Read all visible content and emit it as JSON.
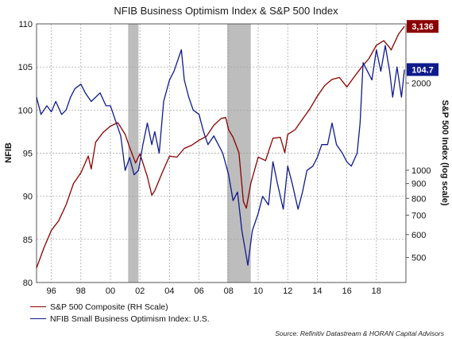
{
  "title": "NFIB Business Optimism Index & S&P 500 Index",
  "source": "Source: Refinitiv Datastream & HORAN Capital Advisors",
  "legend": [
    {
      "label": "S&P 500 Composite (RH Scale)",
      "color": "#8b0000"
    },
    {
      "label": "NFIB Small Business Optimism Index: U.S.",
      "color": "#0f1a8c"
    }
  ],
  "colors": {
    "sp500": "#8b0000",
    "nfib": "#0f1a8c",
    "recession": "#bdbdbd",
    "grid": "#9a9a9a"
  },
  "chart_data": {
    "type": "line",
    "left_axis": {
      "label": "NFIB",
      "range": [
        80,
        110
      ],
      "ticks": [
        80,
        85,
        90,
        95,
        100,
        105,
        110
      ]
    },
    "right_axis": {
      "label": "S&P 500 Index (log scale)",
      "scale": "log",
      "range": [
        410,
        3200
      ],
      "ticks": [
        500,
        600,
        700,
        800,
        900,
        1000,
        2000
      ]
    },
    "x_axis": {
      "range": [
        1995.0,
        2020.0
      ],
      "tick_values": [
        1996,
        1998,
        2000,
        2002,
        2004,
        2006,
        2008,
        2010,
        2012,
        2014,
        2016,
        2018
      ],
      "tick_labels": [
        "96",
        "98",
        "00",
        "02",
        "04",
        "06",
        "08",
        "10",
        "12",
        "14",
        "16",
        "18"
      ]
    },
    "grid": true,
    "legend_position": "bottom-left",
    "recessions": [
      [
        2001.2,
        2001.9
      ],
      [
        2007.9,
        2009.5
      ]
    ],
    "callouts": [
      {
        "series": "sp500",
        "label": "3,136",
        "value": 3136
      },
      {
        "series": "nfib",
        "label": "104.7",
        "value": 104.7
      }
    ],
    "series": [
      {
        "name": "S&P 500 Composite (RH Scale)",
        "axis": "right",
        "x": [
          1995.0,
          1995.5,
          1996.0,
          1996.5,
          1997.0,
          1997.5,
          1998.0,
          1998.5,
          1998.7,
          1999.0,
          1999.5,
          2000.0,
          2000.5,
          2000.8,
          2001.0,
          2001.3,
          2001.7,
          2002.0,
          2002.5,
          2002.8,
          2003.0,
          2003.5,
          2004.0,
          2004.5,
          2005.0,
          2005.5,
          2006.0,
          2006.5,
          2007.0,
          2007.5,
          2007.8,
          2008.0,
          2008.3,
          2008.7,
          2009.0,
          2009.2,
          2009.5,
          2010.0,
          2010.5,
          2011.0,
          2011.5,
          2011.8,
          2012.0,
          2012.5,
          2013.0,
          2013.5,
          2014.0,
          2014.5,
          2015.0,
          2015.5,
          2016.0,
          2016.5,
          2017.0,
          2017.5,
          2018.0,
          2018.5,
          2018.9,
          2019.0,
          2019.5,
          2019.9
        ],
        "values": [
          460,
          540,
          620,
          670,
          760,
          900,
          980,
          1120,
          1010,
          1250,
          1350,
          1420,
          1460,
          1380,
          1330,
          1200,
          1060,
          1140,
          950,
          820,
          850,
          980,
          1120,
          1110,
          1190,
          1220,
          1270,
          1310,
          1430,
          1510,
          1520,
          1380,
          1300,
          1150,
          780,
          740,
          900,
          1110,
          1080,
          1290,
          1300,
          1150,
          1330,
          1380,
          1500,
          1630,
          1800,
          1960,
          2060,
          2090,
          1940,
          2100,
          2270,
          2430,
          2700,
          2800,
          2650,
          2600,
          2950,
          3136
        ]
      },
      {
        "name": "NFIB Small Business Optimism Index: U.S.",
        "axis": "left",
        "x": [
          1995.0,
          1995.3,
          1995.7,
          1996.0,
          1996.3,
          1996.7,
          1997.0,
          1997.3,
          1997.6,
          1998.0,
          1998.3,
          1998.7,
          1999.0,
          1999.3,
          1999.7,
          2000.0,
          2000.3,
          2000.7,
          2001.0,
          2001.3,
          2001.6,
          2001.9,
          2002.2,
          2002.5,
          2002.8,
          2003.0,
          2003.3,
          2003.6,
          2004.0,
          2004.3,
          2004.6,
          2004.8,
          2005.0,
          2005.3,
          2005.6,
          2006.0,
          2006.3,
          2006.6,
          2007.0,
          2007.3,
          2007.6,
          2008.0,
          2008.3,
          2008.6,
          2008.9,
          2009.1,
          2009.3,
          2009.6,
          2010.0,
          2010.3,
          2010.7,
          2011.0,
          2011.3,
          2011.7,
          2012.0,
          2012.3,
          2012.7,
          2013.0,
          2013.3,
          2013.7,
          2014.0,
          2014.3,
          2014.7,
          2015.0,
          2015.3,
          2015.7,
          2016.0,
          2016.3,
          2016.7,
          2016.9,
          2017.1,
          2017.4,
          2017.7,
          2018.0,
          2018.3,
          2018.6,
          2018.9,
          2019.1,
          2019.4,
          2019.7,
          2019.9
        ],
        "values": [
          101.5,
          99.5,
          100.5,
          99.8,
          101.0,
          99.5,
          100.0,
          101.5,
          102.5,
          103.0,
          102.0,
          101.0,
          101.5,
          102.0,
          100.5,
          100.5,
          99.0,
          97.0,
          93.0,
          94.5,
          92.5,
          93.0,
          96.0,
          98.5,
          96.0,
          97.5,
          95.0,
          101.0,
          103.5,
          104.5,
          106.0,
          107.0,
          103.5,
          101.5,
          100.0,
          99.5,
          97.5,
          96.0,
          97.0,
          96.0,
          95.0,
          92.5,
          89.5,
          90.5,
          86.0,
          84.0,
          82.0,
          86.0,
          88.0,
          90.0,
          89.0,
          94.0,
          91.5,
          88.5,
          93.5,
          91.5,
          88.5,
          90.5,
          93.0,
          93.5,
          94.5,
          96.0,
          96.0,
          98.5,
          96.0,
          95.0,
          94.0,
          93.5,
          95.0,
          98.5,
          105.5,
          104.5,
          103.5,
          107.0,
          104.5,
          107.5,
          104.5,
          101.5,
          105.0,
          101.5,
          104.7
        ]
      }
    ]
  }
}
